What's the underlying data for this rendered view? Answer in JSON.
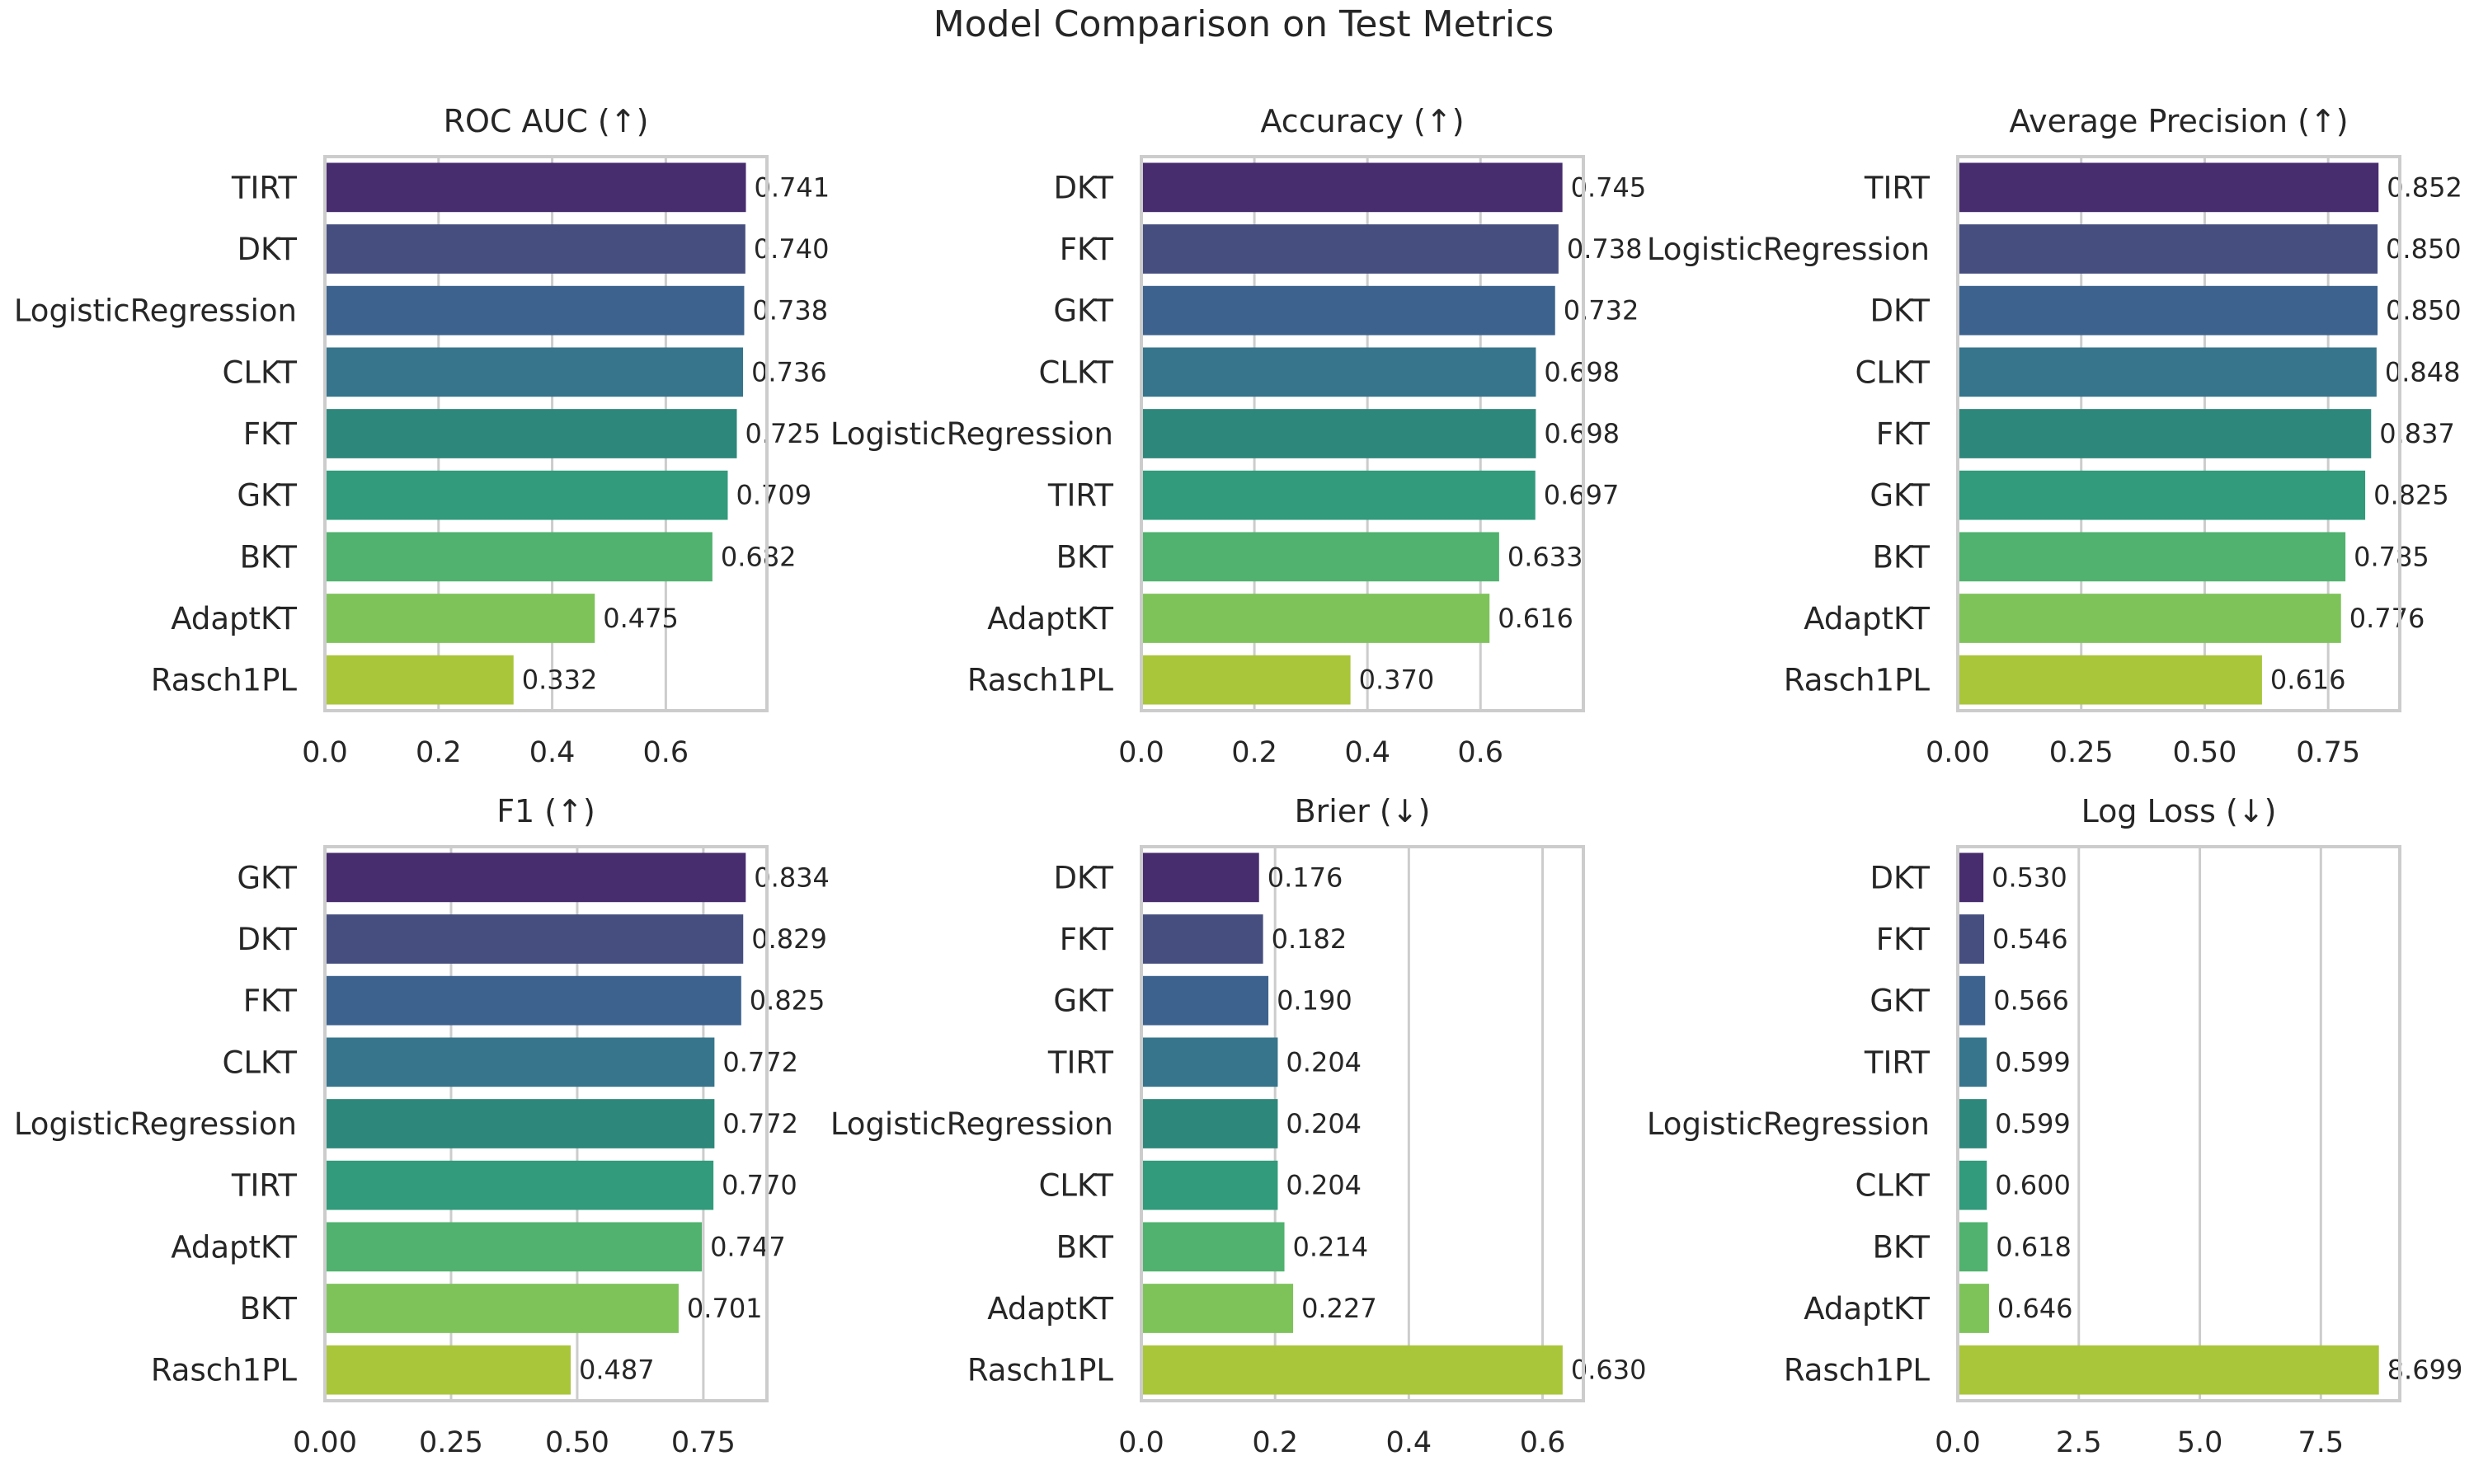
{
  "figure": {
    "title": "Model Comparison on Test Metrics"
  },
  "palette": [
    "#472c6e",
    "#454e7e",
    "#3c628d",
    "#36758b",
    "#2e877b",
    "#319b7b",
    "#50b26e",
    "#7ec35a",
    "#a9c63a"
  ],
  "chart_data": [
    {
      "type": "bar",
      "orientation": "horizontal",
      "title": "ROC AUC (↑)",
      "categories": [
        "TIRT",
        "DKT",
        "LogisticRegression",
        "CLKT",
        "FKT",
        "GKT",
        "BKT",
        "AdaptKT",
        "Rasch1PL"
      ],
      "values": [
        0.741,
        0.74,
        0.738,
        0.736,
        0.725,
        0.709,
        0.682,
        0.475,
        0.332
      ],
      "value_labels": [
        "0.741",
        "0.740",
        "0.738",
        "0.736",
        "0.725",
        "0.709",
        "0.682",
        "0.475",
        "0.332"
      ],
      "xlim": [
        0,
        0.778
      ],
      "xticks": [
        0,
        0.2,
        0.4,
        0.6
      ],
      "xtick_labels": [
        "0.0",
        "0.2",
        "0.4",
        "0.6"
      ],
      "grid": true
    },
    {
      "type": "bar",
      "orientation": "horizontal",
      "title": "Accuracy (↑)",
      "categories": [
        "DKT",
        "FKT",
        "GKT",
        "CLKT",
        "LogisticRegression",
        "TIRT",
        "BKT",
        "AdaptKT",
        "Rasch1PL"
      ],
      "values": [
        0.745,
        0.738,
        0.732,
        0.698,
        0.698,
        0.697,
        0.633,
        0.616,
        0.37
      ],
      "value_labels": [
        "0.745",
        "0.738",
        "0.732",
        "0.698",
        "0.698",
        "0.697",
        "0.633",
        "0.616",
        "0.370"
      ],
      "xlim": [
        0,
        0.782
      ],
      "xticks": [
        0,
        0.2,
        0.4,
        0.6
      ],
      "xtick_labels": [
        "0.0",
        "0.2",
        "0.4",
        "0.6"
      ],
      "grid": true
    },
    {
      "type": "bar",
      "orientation": "horizontal",
      "title": "Average Precision (↑)",
      "categories": [
        "TIRT",
        "LogisticRegression",
        "DKT",
        "CLKT",
        "FKT",
        "GKT",
        "BKT",
        "AdaptKT",
        "Rasch1PL"
      ],
      "values": [
        0.852,
        0.85,
        0.85,
        0.848,
        0.837,
        0.825,
        0.785,
        0.776,
        0.616
      ],
      "value_labels": [
        "0.852",
        "0.850",
        "0.850",
        "0.848",
        "0.837",
        "0.825",
        "0.785",
        "0.776",
        "0.616"
      ],
      "xlim": [
        0,
        0.895
      ],
      "xticks": [
        0,
        0.25,
        0.5,
        0.75
      ],
      "xtick_labels": [
        "0.00",
        "0.25",
        "0.50",
        "0.75"
      ],
      "grid": true
    },
    {
      "type": "bar",
      "orientation": "horizontal",
      "title": "F1 (↑)",
      "categories": [
        "GKT",
        "DKT",
        "FKT",
        "CLKT",
        "LogisticRegression",
        "TIRT",
        "AdaptKT",
        "BKT",
        "Rasch1PL"
      ],
      "values": [
        0.834,
        0.829,
        0.825,
        0.772,
        0.772,
        0.77,
        0.747,
        0.701,
        0.487
      ],
      "value_labels": [
        "0.834",
        "0.829",
        "0.825",
        "0.772",
        "0.772",
        "0.770",
        "0.747",
        "0.701",
        "0.487"
      ],
      "xlim": [
        0,
        0.876
      ],
      "xticks": [
        0,
        0.25,
        0.5,
        0.75
      ],
      "xtick_labels": [
        "0.00",
        "0.25",
        "0.50",
        "0.75"
      ],
      "grid": true
    },
    {
      "type": "bar",
      "orientation": "horizontal",
      "title": "Brier (↓)",
      "categories": [
        "DKT",
        "FKT",
        "GKT",
        "TIRT",
        "LogisticRegression",
        "CLKT",
        "BKT",
        "AdaptKT",
        "Rasch1PL"
      ],
      "values": [
        0.176,
        0.182,
        0.19,
        0.204,
        0.204,
        0.204,
        0.214,
        0.227,
        0.63
      ],
      "value_labels": [
        "0.176",
        "0.182",
        "0.190",
        "0.204",
        "0.204",
        "0.204",
        "0.214",
        "0.227",
        "0.630"
      ],
      "xlim": [
        0,
        0.661
      ],
      "xticks": [
        0,
        0.2,
        0.4,
        0.6
      ],
      "xtick_labels": [
        "0.0",
        "0.2",
        "0.4",
        "0.6"
      ],
      "grid": true
    },
    {
      "type": "bar",
      "orientation": "horizontal",
      "title": "Log Loss (↓)",
      "categories": [
        "DKT",
        "FKT",
        "GKT",
        "TIRT",
        "LogisticRegression",
        "CLKT",
        "BKT",
        "AdaptKT",
        "Rasch1PL"
      ],
      "values": [
        0.53,
        0.546,
        0.566,
        0.599,
        0.599,
        0.6,
        0.618,
        0.646,
        8.699
      ],
      "value_labels": [
        "0.530",
        "0.546",
        "0.566",
        "0.599",
        "0.599",
        "0.600",
        "0.618",
        "0.646",
        "8.699"
      ],
      "xlim": [
        0,
        9.13
      ],
      "xticks": [
        0,
        2.5,
        5,
        7.5
      ],
      "xtick_labels": [
        "0.0",
        "2.5",
        "5.0",
        "7.5"
      ],
      "grid": true
    }
  ]
}
